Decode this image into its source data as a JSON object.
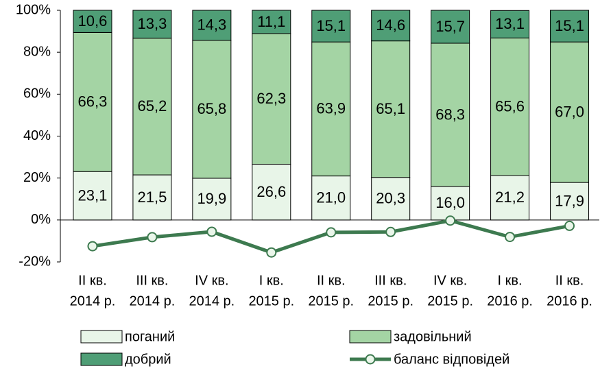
{
  "chart_data": {
    "type": "stacked_bar_line",
    "categories": [
      [
        "II кв.",
        "2014 р."
      ],
      [
        "III кв.",
        "2014 р."
      ],
      [
        "IV кв.",
        "2014 р."
      ],
      [
        "I кв.",
        "2015 р."
      ],
      [
        "II кв.",
        "2015 р."
      ],
      [
        "III кв.",
        "2015 р."
      ],
      [
        "IV кв.",
        "2015 р."
      ],
      [
        "I кв.",
        "2016 р."
      ],
      [
        "II кв.",
        "2016 р."
      ]
    ],
    "series": [
      {
        "name": "поганий",
        "color": "#e8f5e8",
        "values": [
          23.1,
          21.5,
          19.9,
          26.6,
          21.0,
          20.3,
          16.0,
          21.2,
          17.9
        ],
        "value_labels": [
          "23,1",
          "21,5",
          "19,9",
          "26,6",
          "21,0",
          "20,3",
          "16,0",
          "21,2",
          "17,9"
        ]
      },
      {
        "name": "задовільний",
        "color": "#a4d4a4",
        "values": [
          66.3,
          65.2,
          65.8,
          62.3,
          63.9,
          65.1,
          68.3,
          65.6,
          67.0
        ],
        "value_labels": [
          "66,3",
          "65,2",
          "65,8",
          "62,3",
          "63,9",
          "65,1",
          "68,3",
          "65,6",
          "67,0"
        ]
      },
      {
        "name": "добрий",
        "color": "#4f9e76",
        "values": [
          10.6,
          13.3,
          14.3,
          11.1,
          15.1,
          14.6,
          15.7,
          13.1,
          15.1
        ],
        "value_labels": [
          "10,6",
          "13,3",
          "14,3",
          "11,1",
          "15,1",
          "14,6",
          "15,7",
          "13,1",
          "15,1"
        ]
      },
      {
        "name": "баланс відповідей",
        "type": "line",
        "color": "#3d7a4f",
        "values": [
          -12.5,
          -8.2,
          -5.6,
          -15.5,
          -5.9,
          -5.7,
          -0.3,
          -8.1,
          -2.8
        ]
      }
    ],
    "ylim": [
      -20,
      100
    ],
    "yticks": [
      {
        "value": -20,
        "label": "-20%"
      },
      {
        "value": 0,
        "label": "0%"
      },
      {
        "value": 20,
        "label": "20%"
      },
      {
        "value": 40,
        "label": "40%"
      },
      {
        "value": 60,
        "label": "60%"
      },
      {
        "value": 80,
        "label": "80%"
      },
      {
        "value": 100,
        "label": "100%"
      }
    ],
    "grid": false,
    "legend": "bottom"
  }
}
